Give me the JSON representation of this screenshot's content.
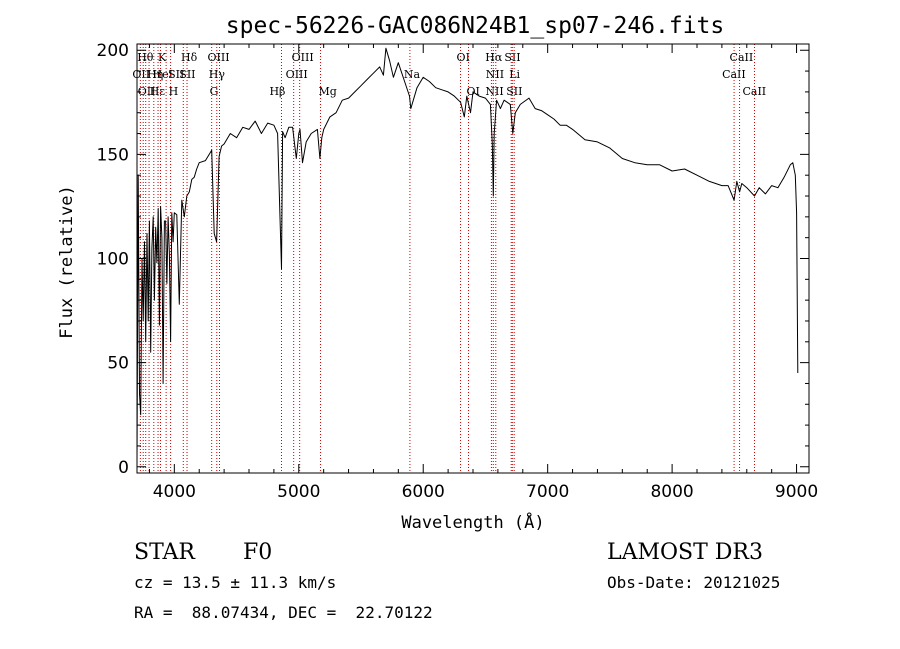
{
  "chart_data": {
    "type": "line",
    "title": "spec-56226-GAC086N24B1_sp07-246.fits",
    "xlabel": "Wavelength (Å)",
    "ylabel": "Flux (relative)",
    "xlim": [
      3700,
      9100
    ],
    "ylim": [
      -3,
      203
    ],
    "xticks": [
      4000,
      5000,
      6000,
      7000,
      8000,
      9000
    ],
    "yticks": [
      0,
      50,
      100,
      150,
      200
    ],
    "grid": false,
    "series": [
      {
        "name": "flux",
        "x": [
          3700,
          3710,
          3720,
          3730,
          3740,
          3750,
          3760,
          3770,
          3780,
          3790,
          3800,
          3810,
          3820,
          3830,
          3840,
          3850,
          3860,
          3870,
          3880,
          3890,
          3900,
          3910,
          3920,
          3930,
          3940,
          3950,
          3960,
          3970,
          3980,
          3990,
          4000,
          4020,
          4040,
          4060,
          4080,
          4100,
          4120,
          4140,
          4160,
          4180,
          4200,
          4250,
          4300,
          4320,
          4340,
          4360,
          4380,
          4400,
          4450,
          4500,
          4550,
          4600,
          4650,
          4700,
          4750,
          4800,
          4830,
          4850,
          4861,
          4870,
          4890,
          4920,
          4950,
          4980,
          5000,
          5010,
          5030,
          5060,
          5100,
          5150,
          5170,
          5185,
          5200,
          5250,
          5300,
          5350,
          5400,
          5450,
          5500,
          5550,
          5600,
          5650,
          5680,
          5700,
          5730,
          5760,
          5800,
          5850,
          5890,
          5900,
          5950,
          6000,
          6050,
          6100,
          6150,
          6200,
          6250,
          6300,
          6330,
          6350,
          6380,
          6400,
          6450,
          6500,
          6540,
          6555,
          6563,
          6570,
          6590,
          6620,
          6650,
          6700,
          6720,
          6740,
          6780,
          6850,
          6900,
          6950,
          7000,
          7050,
          7100,
          7150,
          7200,
          7300,
          7400,
          7500,
          7600,
          7700,
          7800,
          7900,
          8000,
          8100,
          8200,
          8300,
          8400,
          8450,
          8498,
          8520,
          8542,
          8560,
          8600,
          8662,
          8700,
          8750,
          8800,
          8850,
          8900,
          8950,
          8970,
          8990,
          9000,
          9010
        ],
        "y": [
          2,
          140,
          35,
          25,
          100,
          70,
          108,
          60,
          112,
          70,
          118,
          55,
          105,
          120,
          80,
          115,
          98,
          124,
          68,
          125,
          110,
          40,
          118,
          118,
          88,
          120,
          102,
          60,
          122,
          108,
          122,
          121,
          78,
          128,
          120,
          130,
          132,
          138,
          139,
          143,
          146,
          147,
          152,
          112,
          108,
          149,
          154,
          155,
          160,
          158,
          163,
          162,
          166,
          160,
          165,
          164,
          160,
          118,
          95,
          161,
          158,
          163,
          163,
          148,
          160,
          162,
          146,
          156,
          160,
          162,
          148,
          158,
          162,
          168,
          170,
          176,
          177,
          180,
          183,
          186,
          189,
          192,
          188,
          201,
          195,
          187,
          194,
          185,
          178,
          172,
          182,
          187,
          185,
          182,
          181,
          180,
          178,
          175,
          168,
          178,
          170,
          180,
          178,
          177,
          174,
          155,
          130,
          160,
          176,
          172,
          176,
          174,
          160,
          170,
          174,
          177,
          172,
          171,
          169,
          167,
          164,
          164,
          162,
          157,
          156,
          153,
          148,
          146,
          145,
          145,
          142,
          143,
          140,
          137,
          135,
          135,
          128,
          137,
          132,
          136,
          134,
          130,
          134,
          131,
          135,
          134,
          139,
          145,
          146,
          140,
          122,
          45
        ]
      }
    ],
    "line_markers": [
      {
        "wave": 3727,
        "label": "OII",
        "row": 1,
        "dx": -8
      },
      {
        "wave": 3750,
        "label": "Hθ",
        "row": 0,
        "dx": -6
      },
      {
        "wave": 3770,
        "label": "OII",
        "row": 2,
        "dx": -8
      },
      {
        "wave": 3797,
        "label": "Hη",
        "row": 1,
        "dx": -2
      },
      {
        "wave": 3835,
        "label": "Hε",
        "row": 2,
        "dx": -4
      },
      {
        "wave": 3869,
        "label": "K",
        "row": 0,
        "dx": 0
      },
      {
        "wave": 3889,
        "label": "HeI",
        "row": 1,
        "dx": -8
      },
      {
        "wave": 3934,
        "label": "SII",
        "row": 1,
        "dx": 2
      },
      {
        "wave": 3970,
        "label": "H",
        "row": 2,
        "dx": -2
      },
      {
        "wave": 4102,
        "label": "Hδ",
        "row": 0,
        "dx": -6
      },
      {
        "wave": 4072,
        "label": "SII",
        "row": 1,
        "dx": -4
      },
      {
        "wave": 4300,
        "label": "G",
        "row": 2,
        "dx": -2
      },
      {
        "wave": 4341,
        "label": "Hγ",
        "row": 1,
        "dx": -8
      },
      {
        "wave": 4363,
        "label": "OIII",
        "row": 0,
        "dx": -12
      },
      {
        "wave": 4861,
        "label": "Hβ",
        "row": 2,
        "dx": -12
      },
      {
        "wave": 4959,
        "label": "OIII",
        "row": 1,
        "dx": -8
      },
      {
        "wave": 5007,
        "label": "OIII",
        "row": 0,
        "dx": -8
      },
      {
        "wave": 5175,
        "label": "Mg",
        "row": 2,
        "dx": -2
      },
      {
        "wave": 5893,
        "label": "Na",
        "row": 1,
        "dx": -6
      },
      {
        "wave": 6300,
        "label": "OI",
        "row": 0,
        "dx": -4
      },
      {
        "wave": 6364,
        "label": "OI",
        "row": 2,
        "dx": -2
      },
      {
        "wave": 6548,
        "label": "NII",
        "row": 2,
        "dx": -6
      },
      {
        "wave": 6563,
        "label": "Hα",
        "row": 0,
        "dx": -8
      },
      {
        "wave": 6583,
        "label": "NII",
        "row": 1,
        "dx": -10
      },
      {
        "wave": 6707,
        "label": "Li",
        "row": 1,
        "dx": -2
      },
      {
        "wave": 6716,
        "label": "SII",
        "row": 0,
        "dx": -8
      },
      {
        "wave": 6731,
        "label": "SII",
        "row": 2,
        "dx": -8
      },
      {
        "wave": 8498,
        "label": "CaII",
        "row": 1,
        "dx": -12
      },
      {
        "wave": 8542,
        "label": "CaII",
        "row": 0,
        "dx": -10
      },
      {
        "wave": 8662,
        "label": "CaII",
        "row": 2,
        "dx": -12
      }
    ]
  },
  "info": {
    "class_label": "STAR",
    "subclass_label": "F0",
    "survey_label": "LAMOST DR3",
    "redshift_label": "cz = 13.5 ± 11.3 km/s",
    "obs_date_label": "Obs-Date: 20121025",
    "coords_label": "RA =  88.07434, DEC =  22.70122"
  },
  "colors": {
    "line_marker": "#cc0000",
    "spectrum": "#000000",
    "axis": "#000000"
  }
}
